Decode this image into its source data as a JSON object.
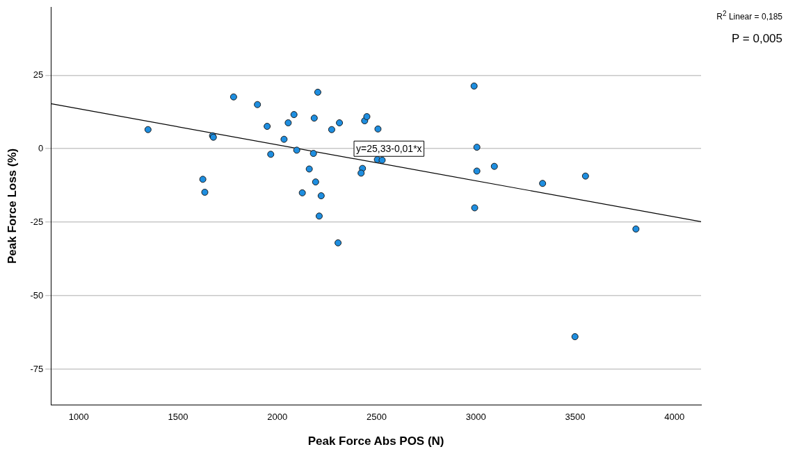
{
  "chart_data": {
    "type": "scatter",
    "xlabel": "Peak Force Abs POS (N)",
    "ylabel": "Peak Force Loss (%)",
    "xlim": [
      860,
      4134
    ],
    "ylim": [
      -87,
      48
    ],
    "xticks": [
      1000,
      1500,
      2000,
      2500,
      3000,
      3500,
      4000
    ],
    "yticks": [
      -75,
      -50,
      -25,
      0,
      25
    ],
    "grid": "y",
    "legend": false,
    "marker": "circle",
    "annotations": [
      "R$^{2}$ Linear = 0,185",
      "P = 0,005",
      "y=25,33-0,01*x"
    ],
    "series": [
      {
        "color": "#1e8ee0",
        "x": [
          1349,
          1674,
          1678,
          1780,
          1900,
          1949,
          1967,
          2034,
          2055,
          2084,
          2098,
          2204,
          2186,
          2182,
          2161,
          2193,
          2126,
          2221,
          2211,
          2306,
          2274,
          2313,
          2440,
          2451,
          2507,
          2504,
          2528,
          2429,
          2422,
          1625,
          1635,
          2991,
          3005,
          3005,
          3093,
          3336,
          3552,
          2994,
          3806,
          3499
        ],
        "values": [
          6.5,
          4.4,
          3.9,
          17.6,
          15.0,
          7.6,
          -1.9,
          3.2,
          8.8,
          11.6,
          -0.5,
          19.2,
          10.4,
          -1.6,
          -6.9,
          -11.3,
          -15.0,
          -16.0,
          -22.9,
          -32.0,
          6.5,
          8.8,
          9.5,
          10.9,
          6.7,
          -3.7,
          -3.9,
          -6.7,
          -8.3,
          -10.4,
          -14.8,
          21.3,
          0.5,
          -7.6,
          -6.0,
          -11.8,
          -9.3,
          -20.1,
          -27.3,
          -63.9
        ]
      },
      {
        "type": "line",
        "color": "#000000",
        "marker": "none",
        "x": [
          860,
          4134
        ],
        "values": [
          15.3,
          -24.8
        ]
      }
    ]
  }
}
